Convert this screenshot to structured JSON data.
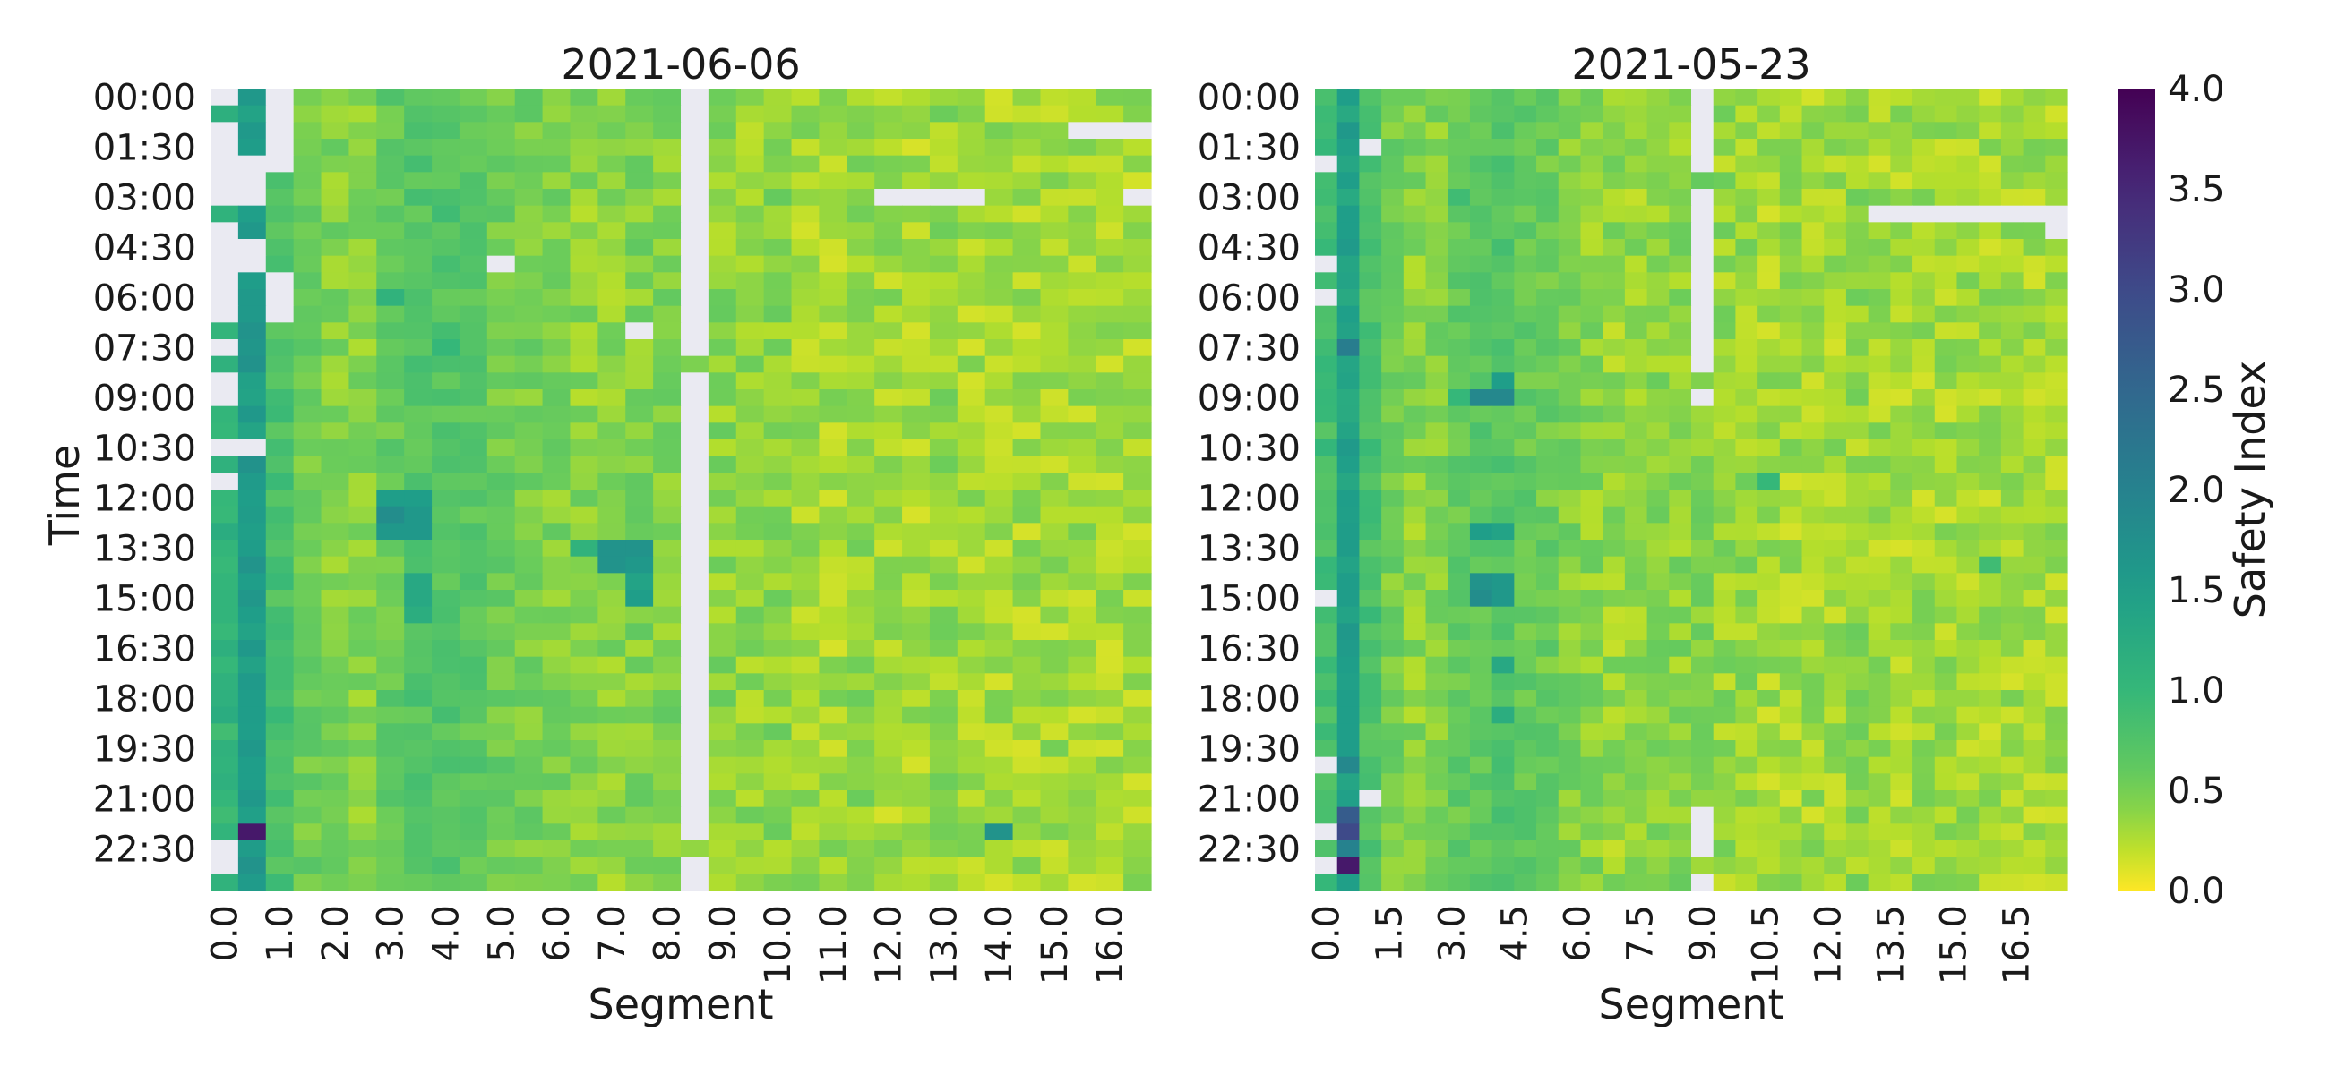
{
  "figure": {
    "colormap": "viridis_r",
    "missing_color": "#eaeaf2",
    "colorbar": {
      "label": "Safety Index",
      "ticks": [
        "0.0",
        "0.5",
        "1.0",
        "1.5",
        "2.0",
        "2.5",
        "3.0",
        "3.5",
        "4.0"
      ],
      "vmin": 0.0,
      "vmax": 4.0
    }
  },
  "chart_data": [
    {
      "type": "heatmap",
      "title": "2021-06-06",
      "xlabel": "Segment",
      "ylabel": "Time",
      "x_tick_labels": [
        "0.0",
        "1.0",
        "2.0",
        "3.0",
        "4.0",
        "5.0",
        "6.0",
        "7.0",
        "8.0",
        "9.0",
        "10.0",
        "11.0",
        "12.0",
        "13.0",
        "14.0",
        "15.0",
        "16.0"
      ],
      "y_tick_labels": [
        "00:00",
        "01:30",
        "03:00",
        "04:30",
        "06:00",
        "07:30",
        "09:00",
        "10:30",
        "12:00",
        "13:30",
        "15:00",
        "16:30",
        "18:00",
        "19:30",
        "21:00",
        "22:30"
      ],
      "n_cols": 34,
      "n_rows": 48,
      "col_profile": [
        1.05,
        1.55,
        0.8,
        0.55,
        0.45,
        0.4,
        0.6,
        0.7,
        0.7,
        0.65,
        0.55,
        0.5,
        0.45,
        0.4,
        0.4,
        0.45,
        0.45,
        0.45,
        0.4,
        0.35,
        0.4,
        0.3,
        0.3,
        0.35,
        0.3,
        0.3,
        0.35,
        0.3,
        0.3,
        0.3,
        0.3,
        0.3,
        0.3,
        0.3
      ],
      "hot_cells": [
        {
          "r": 0,
          "c": 1,
          "v": 1.6
        },
        {
          "r": 1,
          "c": 1,
          "v": 1.4
        },
        {
          "r": 8,
          "c": 1,
          "v": 1.6
        },
        {
          "r": 14,
          "c": 1,
          "v": 1.7
        },
        {
          "r": 18,
          "c": 1,
          "v": 1.4
        },
        {
          "r": 21,
          "c": 1,
          "v": 1.6
        },
        {
          "r": 24,
          "c": 1,
          "v": 1.5
        },
        {
          "r": 29,
          "c": 1,
          "v": 1.5
        },
        {
          "r": 31,
          "c": 1,
          "v": 1.5
        },
        {
          "r": 32,
          "c": 1,
          "v": 1.4
        },
        {
          "r": 38,
          "c": 1,
          "v": 1.5
        },
        {
          "r": 39,
          "c": 1,
          "v": 1.6
        },
        {
          "r": 40,
          "c": 1,
          "v": 1.5
        },
        {
          "r": 41,
          "c": 1,
          "v": 1.5
        },
        {
          "r": 42,
          "c": 1,
          "v": 1.6
        },
        {
          "r": 44,
          "c": 1,
          "v": 3.7
        },
        {
          "r": 12,
          "c": 6,
          "v": 1.1
        },
        {
          "r": 24,
          "c": 6,
          "v": 1.5
        },
        {
          "r": 24,
          "c": 7,
          "v": 1.5
        },
        {
          "r": 25,
          "c": 6,
          "v": 1.8
        },
        {
          "r": 25,
          "c": 7,
          "v": 1.6
        },
        {
          "r": 26,
          "c": 6,
          "v": 1.6
        },
        {
          "r": 26,
          "c": 7,
          "v": 1.6
        },
        {
          "r": 29,
          "c": 7,
          "v": 1.3
        },
        {
          "r": 30,
          "c": 7,
          "v": 1.3
        },
        {
          "r": 31,
          "c": 7,
          "v": 1.2
        },
        {
          "r": 27,
          "c": 13,
          "v": 1.1
        },
        {
          "r": 27,
          "c": 14,
          "v": 1.7
        },
        {
          "r": 27,
          "c": 15,
          "v": 1.7
        },
        {
          "r": 28,
          "c": 14,
          "v": 1.7
        },
        {
          "r": 28,
          "c": 15,
          "v": 1.6
        },
        {
          "r": 29,
          "c": 15,
          "v": 1.4
        },
        {
          "r": 30,
          "c": 15,
          "v": 1.5
        },
        {
          "r": 44,
          "c": 28,
          "v": 1.7
        },
        {
          "r": 15,
          "c": 8,
          "v": 1.0
        },
        {
          "r": 7,
          "c": 8,
          "v": 0.9
        }
      ],
      "missing_cells": [
        [
          0,
          0
        ],
        [
          0,
          2
        ],
        [
          1,
          2
        ],
        [
          2,
          0
        ],
        [
          2,
          2
        ],
        [
          3,
          0
        ],
        [
          3,
          2
        ],
        [
          4,
          0
        ],
        [
          4,
          1
        ],
        [
          4,
          2
        ],
        [
          5,
          0
        ],
        [
          5,
          1
        ],
        [
          6,
          0
        ],
        [
          6,
          1
        ],
        [
          8,
          0
        ],
        [
          9,
          0
        ],
        [
          9,
          1
        ],
        [
          10,
          0
        ],
        [
          10,
          1
        ],
        [
          11,
          0
        ],
        [
          11,
          2
        ],
        [
          12,
          0
        ],
        [
          12,
          2
        ],
        [
          13,
          0
        ],
        [
          13,
          2
        ],
        [
          15,
          0
        ],
        [
          17,
          0
        ],
        [
          18,
          0
        ],
        [
          21,
          0
        ],
        [
          21,
          1
        ],
        [
          23,
          0
        ],
        [
          10,
          10
        ],
        [
          14,
          15
        ],
        [
          2,
          31
        ],
        [
          2,
          32
        ],
        [
          2,
          33
        ],
        [
          6,
          24
        ],
        [
          6,
          25
        ],
        [
          6,
          26
        ],
        [
          6,
          27
        ],
        [
          6,
          33
        ],
        [
          45,
          0
        ],
        [
          46,
          0
        ]
      ],
      "missing_cols": [
        {
          "c": 17,
          "rows": [
            0,
            1,
            2,
            3,
            4,
            5,
            6,
            7,
            8,
            9,
            10,
            11,
            12,
            13,
            14,
            15,
            17,
            18,
            19,
            20,
            21,
            22,
            23,
            24,
            25,
            26,
            27,
            28,
            29,
            30,
            31,
            32,
            33,
            34,
            35,
            36,
            37,
            38,
            39,
            40,
            41,
            42,
            43,
            44,
            46,
            47
          ]
        }
      ]
    },
    {
      "type": "heatmap",
      "title": "2021-05-23",
      "xlabel": "Segment",
      "ylabel": "",
      "x_tick_labels": [
        "0.0",
        "1.5",
        "3.0",
        "4.5",
        "6.0",
        "7.5",
        "9.0",
        "10.5",
        "12.0",
        "13.5",
        "15.0",
        "16.5"
      ],
      "y_tick_labels": [
        "00:00",
        "01:30",
        "03:00",
        "04:30",
        "06:00",
        "07:30",
        "09:00",
        "10:30",
        "12:00",
        "13:30",
        "15:00",
        "16:30",
        "18:00",
        "19:30",
        "21:00",
        "22:30"
      ],
      "n_cols": 34,
      "n_rows": 48,
      "col_profile": [
        0.85,
        1.4,
        0.8,
        0.5,
        0.4,
        0.45,
        0.6,
        0.65,
        0.7,
        0.6,
        0.55,
        0.45,
        0.4,
        0.35,
        0.35,
        0.4,
        0.4,
        0.4,
        0.35,
        0.35,
        0.3,
        0.3,
        0.3,
        0.3,
        0.35,
        0.3,
        0.3,
        0.3,
        0.3,
        0.3,
        0.3,
        0.3,
        0.3,
        0.3
      ],
      "hot_cells": [
        {
          "r": 0,
          "c": 1,
          "v": 1.5
        },
        {
          "r": 2,
          "c": 1,
          "v": 1.6
        },
        {
          "r": 8,
          "c": 1,
          "v": 1.5
        },
        {
          "r": 15,
          "c": 1,
          "v": 2.1
        },
        {
          "r": 24,
          "c": 1,
          "v": 1.5
        },
        {
          "r": 28,
          "c": 1,
          "v": 1.4
        },
        {
          "r": 31,
          "c": 1,
          "v": 1.4
        },
        {
          "r": 32,
          "c": 1,
          "v": 1.6
        },
        {
          "r": 34,
          "c": 1,
          "v": 1.5
        },
        {
          "r": 36,
          "c": 1,
          "v": 1.5
        },
        {
          "r": 38,
          "c": 1,
          "v": 1.5
        },
        {
          "r": 40,
          "c": 1,
          "v": 1.9
        },
        {
          "r": 43,
          "c": 1,
          "v": 2.7
        },
        {
          "r": 44,
          "c": 1,
          "v": 3.0
        },
        {
          "r": 45,
          "c": 1,
          "v": 2.0
        },
        {
          "r": 46,
          "c": 1,
          "v": 3.7
        },
        {
          "r": 18,
          "c": 6,
          "v": 1.0
        },
        {
          "r": 18,
          "c": 7,
          "v": 1.9
        },
        {
          "r": 18,
          "c": 8,
          "v": 1.9
        },
        {
          "r": 17,
          "c": 8,
          "v": 1.5
        },
        {
          "r": 26,
          "c": 7,
          "v": 1.5
        },
        {
          "r": 26,
          "c": 8,
          "v": 1.4
        },
        {
          "r": 29,
          "c": 7,
          "v": 1.7
        },
        {
          "r": 29,
          "c": 8,
          "v": 1.6
        },
        {
          "r": 30,
          "c": 7,
          "v": 1.8
        },
        {
          "r": 30,
          "c": 8,
          "v": 1.6
        },
        {
          "r": 34,
          "c": 8,
          "v": 1.3
        },
        {
          "r": 37,
          "c": 8,
          "v": 1.2
        },
        {
          "r": 23,
          "c": 20,
          "v": 1.0
        },
        {
          "r": 28,
          "c": 30,
          "v": 0.9
        },
        {
          "r": 6,
          "c": 6,
          "v": 0.9
        }
      ],
      "missing_cells": [
        [
          3,
          2
        ],
        [
          4,
          0
        ],
        [
          10,
          0
        ],
        [
          12,
          0
        ],
        [
          30,
          0
        ],
        [
          40,
          0
        ],
        [
          42,
          2
        ],
        [
          44,
          0
        ],
        [
          46,
          0
        ],
        [
          7,
          25
        ],
        [
          7,
          26
        ],
        [
          7,
          27
        ],
        [
          7,
          28
        ],
        [
          7,
          29
        ],
        [
          7,
          30
        ],
        [
          7,
          31
        ],
        [
          7,
          32
        ],
        [
          7,
          33
        ],
        [
          8,
          33
        ]
      ],
      "missing_cols": [
        {
          "c": 17,
          "rows": [
            0,
            1,
            2,
            3,
            4,
            6,
            7,
            8,
            9,
            10,
            11,
            12,
            13,
            14,
            15,
            16,
            18,
            43,
            44,
            45,
            47
          ]
        }
      ]
    }
  ]
}
